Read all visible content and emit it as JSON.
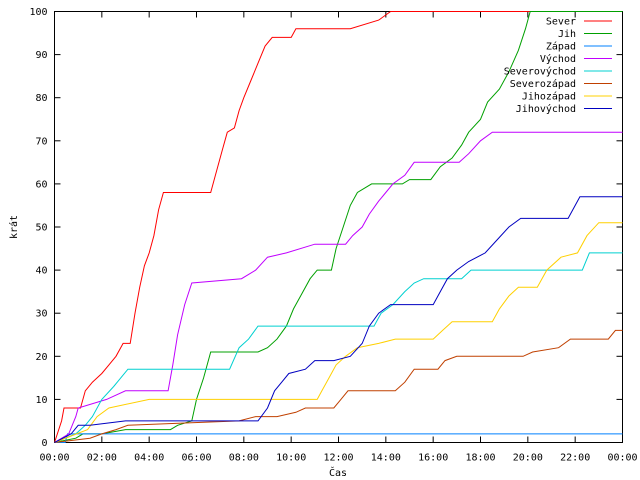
{
  "chart_data": {
    "type": "line",
    "xlabel": "Čas",
    "ylabel": "krát",
    "xlim": [
      0,
      24
    ],
    "ylim": [
      0,
      100
    ],
    "x_ticks": [
      {
        "value": 0,
        "label": "00:00"
      },
      {
        "value": 2,
        "label": "02:00"
      },
      {
        "value": 4,
        "label": "04:00"
      },
      {
        "value": 6,
        "label": "06:00"
      },
      {
        "value": 8,
        "label": "08:00"
      },
      {
        "value": 10,
        "label": "10:00"
      },
      {
        "value": 12,
        "label": "12:00"
      },
      {
        "value": 14,
        "label": "14:00"
      },
      {
        "value": 16,
        "label": "16:00"
      },
      {
        "value": 18,
        "label": "18:00"
      },
      {
        "value": 20,
        "label": "20:00"
      },
      {
        "value": 22,
        "label": "22:00"
      },
      {
        "value": 24,
        "label": "00:00"
      }
    ],
    "y_ticks": [
      0,
      10,
      20,
      30,
      40,
      50,
      60,
      70,
      80,
      90,
      100
    ],
    "grid": false,
    "legend_position": "top-right",
    "series": [
      {
        "name": "Sever",
        "color": "#ff0000",
        "points": [
          [
            0,
            0
          ],
          [
            0.3,
            5
          ],
          [
            0.4,
            8
          ],
          [
            1.1,
            8
          ],
          [
            1.3,
            12
          ],
          [
            1.6,
            14
          ],
          [
            2.0,
            16
          ],
          [
            2.3,
            18
          ],
          [
            2.6,
            20
          ],
          [
            2.9,
            23
          ],
          [
            3.2,
            23
          ],
          [
            3.4,
            30
          ],
          [
            3.6,
            36
          ],
          [
            3.8,
            41
          ],
          [
            4.0,
            44
          ],
          [
            4.2,
            48
          ],
          [
            4.4,
            54
          ],
          [
            4.6,
            58
          ],
          [
            6.6,
            58
          ],
          [
            6.8,
            62
          ],
          [
            7.1,
            68
          ],
          [
            7.3,
            72
          ],
          [
            7.6,
            73
          ],
          [
            7.8,
            77
          ],
          [
            8.0,
            80
          ],
          [
            8.3,
            84
          ],
          [
            8.6,
            88
          ],
          [
            8.9,
            92
          ],
          [
            9.2,
            94
          ],
          [
            10.0,
            94
          ],
          [
            10.2,
            96
          ],
          [
            12.5,
            96
          ],
          [
            13.7,
            98
          ],
          [
            14.2,
            100
          ],
          [
            24,
            100
          ]
        ]
      },
      {
        "name": "Jih",
        "color": "#00a000",
        "points": [
          [
            0,
            0
          ],
          [
            0.9,
            1
          ],
          [
            1.2,
            2
          ],
          [
            2.0,
            2
          ],
          [
            3.0,
            3
          ],
          [
            4.9,
            3
          ],
          [
            5.2,
            4
          ],
          [
            5.8,
            5
          ],
          [
            6.0,
            10
          ],
          [
            6.3,
            15
          ],
          [
            6.6,
            21
          ],
          [
            8.6,
            21
          ],
          [
            9.0,
            22
          ],
          [
            9.4,
            24
          ],
          [
            9.8,
            27
          ],
          [
            10.1,
            31
          ],
          [
            10.4,
            34
          ],
          [
            10.8,
            38
          ],
          [
            11.1,
            40
          ],
          [
            11.7,
            40
          ],
          [
            11.9,
            45
          ],
          [
            12.2,
            50
          ],
          [
            12.5,
            55
          ],
          [
            12.8,
            58
          ],
          [
            13.4,
            60
          ],
          [
            14.7,
            60
          ],
          [
            15.0,
            61
          ],
          [
            15.9,
            61
          ],
          [
            16.3,
            64
          ],
          [
            16.8,
            66
          ],
          [
            17.2,
            69
          ],
          [
            17.5,
            72
          ],
          [
            18.0,
            75
          ],
          [
            18.3,
            79
          ],
          [
            18.8,
            82
          ],
          [
            19.2,
            86
          ],
          [
            19.6,
            91
          ],
          [
            19.9,
            96
          ],
          [
            20.1,
            100
          ],
          [
            24,
            100
          ]
        ]
      },
      {
        "name": "Západ",
        "color": "#0080ff",
        "points": [
          [
            0,
            0
          ],
          [
            0.45,
            0
          ],
          [
            0.55,
            2
          ],
          [
            11.1,
            2
          ],
          [
            11.2,
            2
          ],
          [
            24,
            2
          ]
        ]
      },
      {
        "name": "Východ",
        "color": "#c000ff",
        "points": [
          [
            0,
            0
          ],
          [
            0.6,
            2
          ],
          [
            0.9,
            6
          ],
          [
            1.0,
            8
          ],
          [
            2.2,
            10
          ],
          [
            3.0,
            12
          ],
          [
            4.8,
            12
          ],
          [
            5.0,
            18
          ],
          [
            5.2,
            25
          ],
          [
            5.5,
            32
          ],
          [
            5.8,
            37
          ],
          [
            7.9,
            38
          ],
          [
            8.5,
            40
          ],
          [
            9.0,
            43
          ],
          [
            9.8,
            44
          ],
          [
            11.0,
            46
          ],
          [
            12.3,
            46
          ],
          [
            12.6,
            48
          ],
          [
            13.0,
            50
          ],
          [
            13.3,
            53
          ],
          [
            13.7,
            56
          ],
          [
            14.0,
            58
          ],
          [
            14.3,
            60
          ],
          [
            14.8,
            62
          ],
          [
            15.2,
            65
          ],
          [
            17.1,
            65
          ],
          [
            17.5,
            67
          ],
          [
            18.0,
            70
          ],
          [
            18.5,
            72
          ],
          [
            24,
            72
          ]
        ]
      },
      {
        "name": "Severovýchod",
        "color": "#00d0d0",
        "points": [
          [
            0,
            0
          ],
          [
            0.9,
            2
          ],
          [
            1.3,
            4
          ],
          [
            1.6,
            6
          ],
          [
            2.0,
            10
          ],
          [
            2.5,
            13
          ],
          [
            3.1,
            17
          ],
          [
            7.4,
            17
          ],
          [
            7.8,
            22
          ],
          [
            8.2,
            24
          ],
          [
            8.6,
            27
          ],
          [
            13.5,
            27
          ],
          [
            13.8,
            30
          ],
          [
            14.3,
            32
          ],
          [
            14.8,
            35
          ],
          [
            15.2,
            37
          ],
          [
            15.6,
            38
          ],
          [
            17.2,
            38
          ],
          [
            17.6,
            40
          ],
          [
            22.3,
            40
          ],
          [
            22.6,
            44
          ],
          [
            24,
            44
          ]
        ]
      },
      {
        "name": "Severozápad",
        "color": "#c04000",
        "points": [
          [
            0,
            0
          ],
          [
            1.5,
            1
          ],
          [
            2.0,
            2
          ],
          [
            2.6,
            3
          ],
          [
            3.1,
            4
          ],
          [
            7.8,
            5
          ],
          [
            8.5,
            6
          ],
          [
            9.4,
            6
          ],
          [
            10.2,
            7
          ],
          [
            10.6,
            8
          ],
          [
            11.8,
            8
          ],
          [
            12.1,
            10
          ],
          [
            12.4,
            12
          ],
          [
            14.4,
            12
          ],
          [
            14.8,
            14
          ],
          [
            15.2,
            17
          ],
          [
            16.2,
            17
          ],
          [
            16.5,
            19
          ],
          [
            17.0,
            20
          ],
          [
            19.8,
            20
          ],
          [
            20.2,
            21
          ],
          [
            21.3,
            22
          ],
          [
            21.8,
            24
          ],
          [
            23.4,
            24
          ],
          [
            23.7,
            26
          ],
          [
            24,
            26
          ]
        ]
      },
      {
        "name": "Jihozápad",
        "color": "#ffd000",
        "points": [
          [
            0,
            0
          ],
          [
            1.4,
            3
          ],
          [
            1.8,
            6
          ],
          [
            2.3,
            8
          ],
          [
            4.0,
            10
          ],
          [
            11.1,
            10
          ],
          [
            11.3,
            12
          ],
          [
            11.6,
            15
          ],
          [
            11.9,
            18
          ],
          [
            12.3,
            20
          ],
          [
            12.8,
            22
          ],
          [
            13.7,
            23
          ],
          [
            14.4,
            24
          ],
          [
            16.0,
            24
          ],
          [
            16.4,
            26
          ],
          [
            16.8,
            28
          ],
          [
            18.5,
            28
          ],
          [
            18.8,
            31
          ],
          [
            19.2,
            34
          ],
          [
            19.6,
            36
          ],
          [
            20.4,
            36
          ],
          [
            20.8,
            40
          ],
          [
            21.4,
            43
          ],
          [
            22.1,
            44
          ],
          [
            22.5,
            48
          ],
          [
            23.0,
            51
          ],
          [
            24,
            51
          ]
        ]
      },
      {
        "name": "Jihovýchod",
        "color": "#0000c0",
        "points": [
          [
            0,
            0
          ],
          [
            0.7,
            2
          ],
          [
            1.0,
            4
          ],
          [
            1.5,
            4
          ],
          [
            3.0,
            5
          ],
          [
            5.5,
            5
          ],
          [
            8.6,
            5
          ],
          [
            9.0,
            8
          ],
          [
            9.3,
            12
          ],
          [
            9.6,
            14
          ],
          [
            9.9,
            16
          ],
          [
            10.6,
            17
          ],
          [
            11.0,
            19
          ],
          [
            11.8,
            19
          ],
          [
            12.5,
            20
          ],
          [
            13.0,
            23
          ],
          [
            13.3,
            27
          ],
          [
            13.7,
            30
          ],
          [
            14.2,
            32
          ],
          [
            16.0,
            32
          ],
          [
            16.3,
            35
          ],
          [
            16.6,
            38
          ],
          [
            17.0,
            40
          ],
          [
            17.5,
            42
          ],
          [
            18.2,
            44
          ],
          [
            18.7,
            47
          ],
          [
            19.2,
            50
          ],
          [
            19.7,
            52
          ],
          [
            21.7,
            52
          ],
          [
            22.0,
            55
          ],
          [
            22.2,
            57
          ],
          [
            24,
            57
          ]
        ]
      }
    ]
  }
}
